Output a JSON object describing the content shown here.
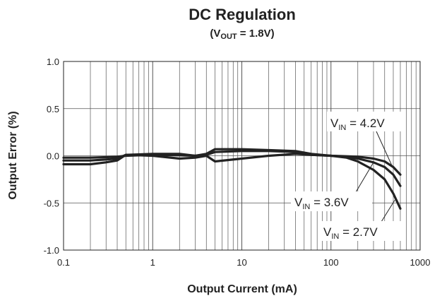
{
  "chart_data": {
    "type": "line",
    "title": "DC Regulation",
    "subtitle": {
      "prefix": "(V",
      "sub": "OUT",
      "suffix": " = 1.8V)"
    },
    "xlabel": "Output Current (mA)",
    "ylabel": "Output Error (%)",
    "x_scale": "log",
    "xlim": [
      0.1,
      1000
    ],
    "ylim": [
      -1.0,
      1.0
    ],
    "x_ticks": [
      0.1,
      1,
      10,
      100,
      1000
    ],
    "x_tick_labels": [
      "0.1",
      "1",
      "10",
      "100",
      "1000"
    ],
    "y_ticks": [
      1.0,
      0.5,
      0.0,
      -0.5,
      -1.0
    ],
    "y_tick_labels": [
      "1.0",
      "0.5",
      "0.0",
      "-0.5",
      "-1.0"
    ],
    "grid": true,
    "line_color": "#222222",
    "series": [
      {
        "name": "VIN = 4.2V",
        "label": {
          "prefix": "V",
          "sub": "IN",
          "suffix": " = 4.2V"
        },
        "x": [
          0.1,
          0.2,
          0.3,
          0.4,
          0.5,
          1,
          2,
          3,
          4,
          5,
          10,
          20,
          40,
          60,
          100,
          150,
          200,
          300,
          400,
          500,
          600
        ],
        "y": [
          -0.02,
          -0.02,
          -0.015,
          -0.01,
          0.0,
          0.01,
          0.005,
          0.0,
          0.01,
          0.04,
          0.05,
          0.05,
          0.04,
          0.01,
          0.0,
          -0.005,
          -0.01,
          -0.03,
          -0.06,
          -0.12,
          -0.2
        ]
      },
      {
        "name": "VIN = 3.6V",
        "label": {
          "prefix": "V",
          "sub": "IN",
          "suffix": " = 3.6V"
        },
        "x": [
          0.1,
          0.2,
          0.3,
          0.4,
          0.5,
          1,
          2,
          3,
          4,
          5,
          10,
          20,
          40,
          60,
          100,
          150,
          200,
          300,
          400,
          500,
          600
        ],
        "y": [
          -0.05,
          -0.05,
          -0.04,
          -0.03,
          0.01,
          0.02,
          0.02,
          0.0,
          0.02,
          0.07,
          0.07,
          0.06,
          0.05,
          0.02,
          0.0,
          -0.01,
          -0.03,
          -0.07,
          -0.12,
          -0.2,
          -0.32
        ]
      },
      {
        "name": "VIN = 2.7V",
        "label": {
          "prefix": "V",
          "sub": "IN",
          "suffix": " = 2.7V"
        },
        "x": [
          0.1,
          0.2,
          0.3,
          0.4,
          0.5,
          1,
          2,
          3,
          4,
          5,
          10,
          20,
          40,
          60,
          100,
          150,
          200,
          300,
          400,
          500,
          600
        ],
        "y": [
          -0.09,
          -0.09,
          -0.07,
          -0.05,
          0.01,
          0.0,
          -0.03,
          -0.02,
          0.0,
          -0.06,
          -0.03,
          0.0,
          0.02,
          0.01,
          0.0,
          -0.02,
          -0.06,
          -0.15,
          -0.25,
          -0.4,
          -0.56
        ]
      }
    ],
    "annotations": [
      {
        "series": "VIN = 4.2V",
        "at_x": 480,
        "at_y": -0.1
      },
      {
        "series": "VIN = 3.6V",
        "at_x": 300,
        "at_y": -0.07
      },
      {
        "series": "VIN = 2.7V",
        "at_x": 520,
        "at_y": -0.47
      }
    ]
  }
}
